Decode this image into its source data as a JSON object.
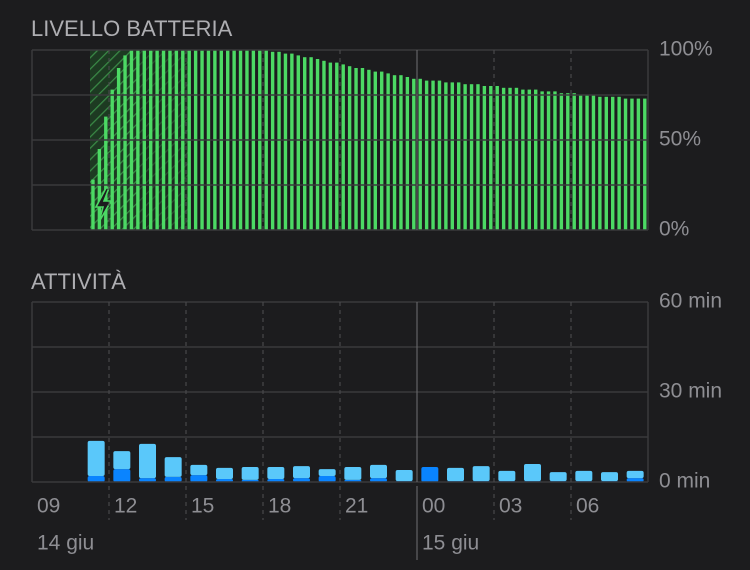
{
  "x_axis": {
    "ticks": [
      "09",
      "12",
      "15",
      "18",
      "21",
      "00",
      "03",
      "06"
    ],
    "dates": [
      "14 giu",
      "15 giu"
    ]
  },
  "chart_data": [
    {
      "type": "bar",
      "title": "LIVELLO BATTERIA",
      "color": "#4cd964",
      "values": [
        null,
        null,
        null,
        null,
        null,
        null,
        null,
        null,
        null,
        28,
        45,
        63,
        78,
        90,
        97,
        100,
        100,
        100,
        100,
        100,
        100,
        100,
        100,
        100,
        100,
        100,
        100,
        100,
        100,
        100,
        100,
        100,
        100,
        100,
        100,
        100,
        100,
        99,
        99,
        98,
        98,
        97,
        96,
        96,
        95,
        94,
        93,
        93,
        92,
        91,
        90,
        90,
        89,
        88,
        88,
        87,
        86,
        86,
        85,
        84,
        84,
        83,
        83,
        83,
        82,
        82,
        82,
        81,
        81,
        81,
        80,
        80,
        80,
        79,
        79,
        79,
        78,
        78,
        78,
        77,
        77,
        77,
        76,
        76,
        76,
        75,
        75,
        75,
        74,
        74,
        74,
        74,
        73,
        73,
        73,
        73
      ],
      "ylim": [
        0,
        100
      ],
      "yticks": [
        {
          "value": 0,
          "label": "0%"
        },
        {
          "value": 50,
          "label": "50%"
        },
        {
          "value": 100,
          "label": "100%"
        }
      ],
      "ygrid": [
        0,
        25,
        50,
        75,
        100
      ]
    },
    {
      "type": "stacked_bar",
      "title": "ATTIVITÀ",
      "series": [
        {
          "color": "#0a84ff",
          "values": [
            null,
            null,
            2,
            4.3,
            1.3,
            1.7,
            2.3,
            1,
            0.7,
            1,
            1.3,
            2,
            0.7,
            1.3,
            0.3,
            5,
            0.3,
            0.3,
            0.3,
            0.3,
            0.3,
            0.3,
            0.3,
            1.3
          ]
        },
        {
          "color": "#5ac8fa",
          "values": [
            null,
            null,
            11.7,
            6,
            11.4,
            6.6,
            3.4,
            3.7,
            4.3,
            4,
            4,
            2.3,
            4.3,
            4.4,
            3.7,
            0,
            4.4,
            5,
            3.4,
            5.7,
            3,
            3.4,
            3,
            2.4
          ]
        }
      ],
      "ylim": [
        0,
        60
      ],
      "yticks": [
        {
          "value": 0,
          "label": "0 min"
        },
        {
          "value": 30,
          "label": "30 min"
        },
        {
          "value": 60,
          "label": "60 min"
        }
      ],
      "ygrid": [
        0,
        15,
        30,
        45,
        60
      ]
    }
  ]
}
